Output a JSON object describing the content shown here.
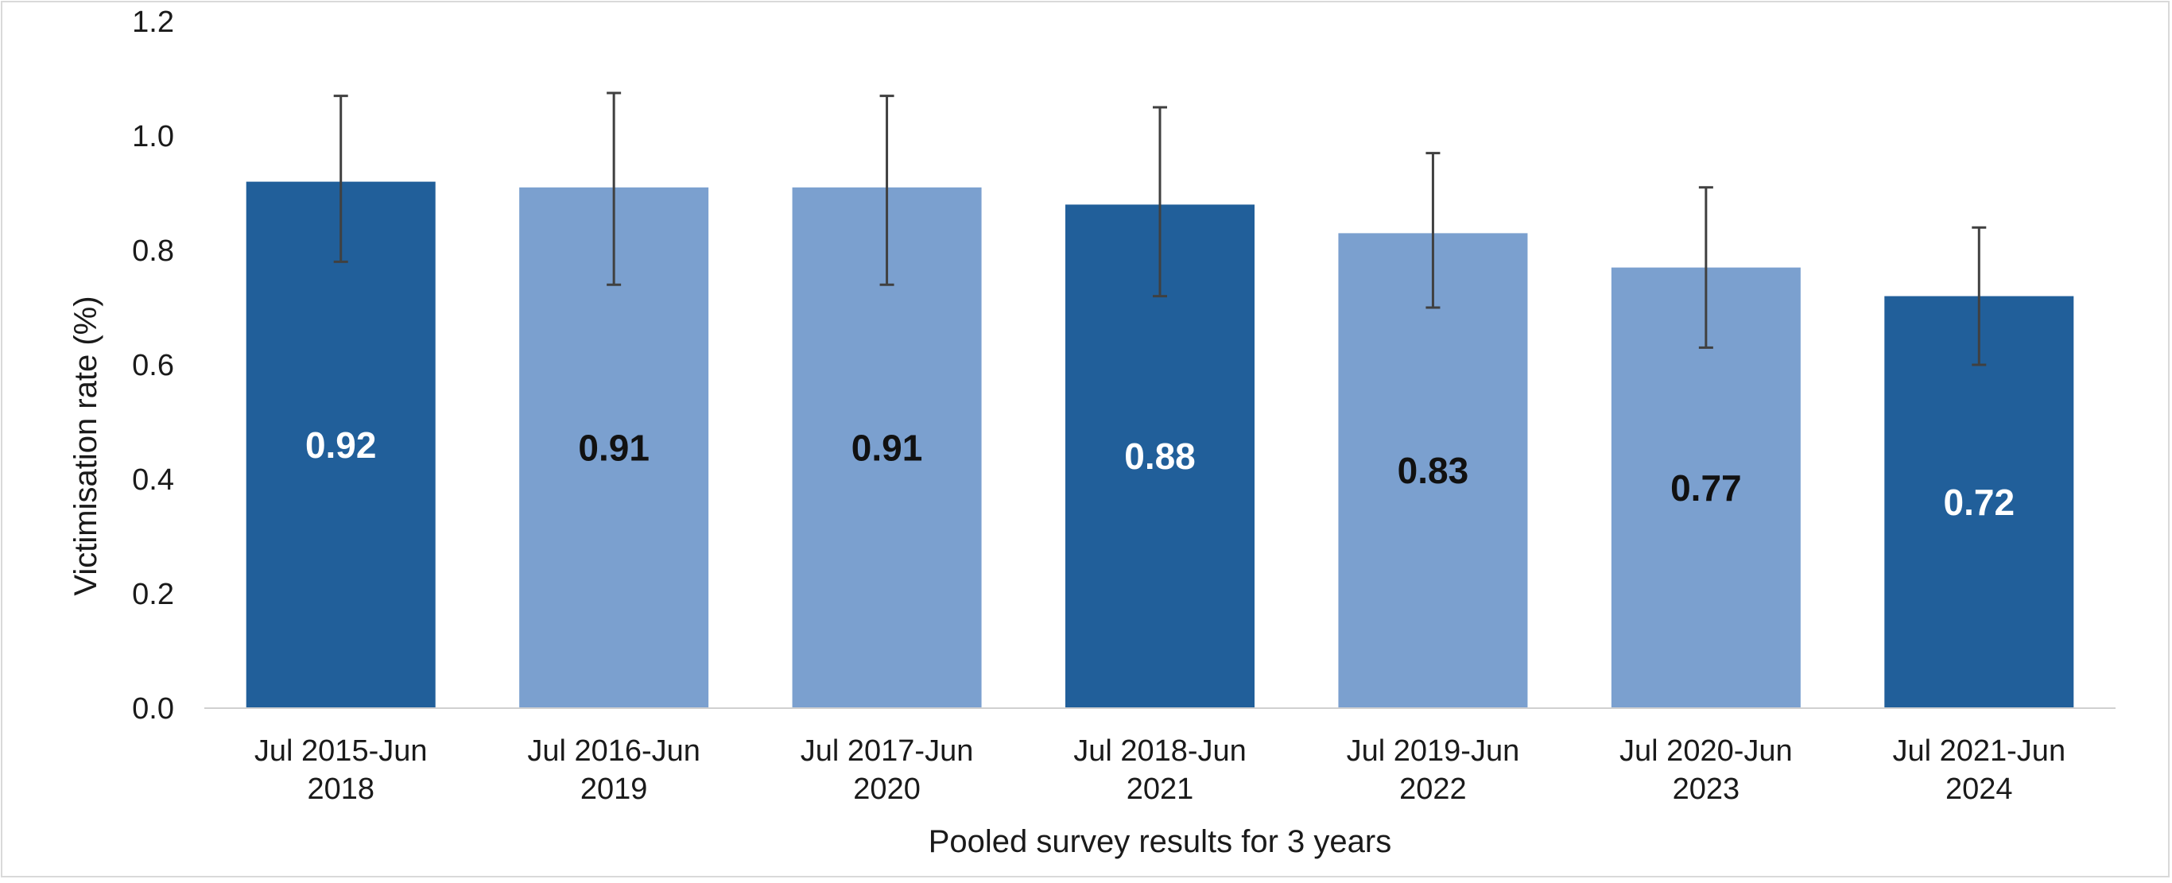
{
  "chart_data": {
    "type": "bar",
    "title": "",
    "xlabel": "Pooled survey results for 3 years",
    "ylabel": "Victimisation rate (%)",
    "ylim": [
      0,
      1.2
    ],
    "yticks": [
      "0.0",
      "0.2",
      "0.4",
      "0.6",
      "0.8",
      "1.0",
      "1.2"
    ],
    "grid": false,
    "legend": "none",
    "categories": [
      [
        "Jul 2015-Jun",
        "2018"
      ],
      [
        "Jul 2016-Jun",
        "2019"
      ],
      [
        "Jul 2017-Jun",
        "2020"
      ],
      [
        "Jul 2018-Jun",
        "2021"
      ],
      [
        "Jul 2019-Jun",
        "2022"
      ],
      [
        "Jul 2020-Jun",
        "2023"
      ],
      [
        "Jul 2021-Jun",
        "2024"
      ]
    ],
    "values": [
      0.92,
      0.91,
      0.91,
      0.88,
      0.83,
      0.77,
      0.72
    ],
    "value_labels": [
      "0.92",
      "0.91",
      "0.91",
      "0.88",
      "0.83",
      "0.77",
      "0.72"
    ],
    "error_low": [
      0.78,
      0.74,
      0.74,
      0.72,
      0.7,
      0.63,
      0.6
    ],
    "error_high": [
      1.07,
      1.075,
      1.07,
      1.05,
      0.97,
      0.91,
      0.84
    ],
    "bar_shade": [
      "dark",
      "light",
      "light",
      "dark",
      "light",
      "light",
      "dark"
    ],
    "colors": {
      "dark": "#215f9a",
      "light": "#7ba0cf",
      "label_on_dark": "#ffffff",
      "label_on_light": "#111111",
      "error_bar": "#404040",
      "axis_line": "#d0d0d0"
    }
  }
}
